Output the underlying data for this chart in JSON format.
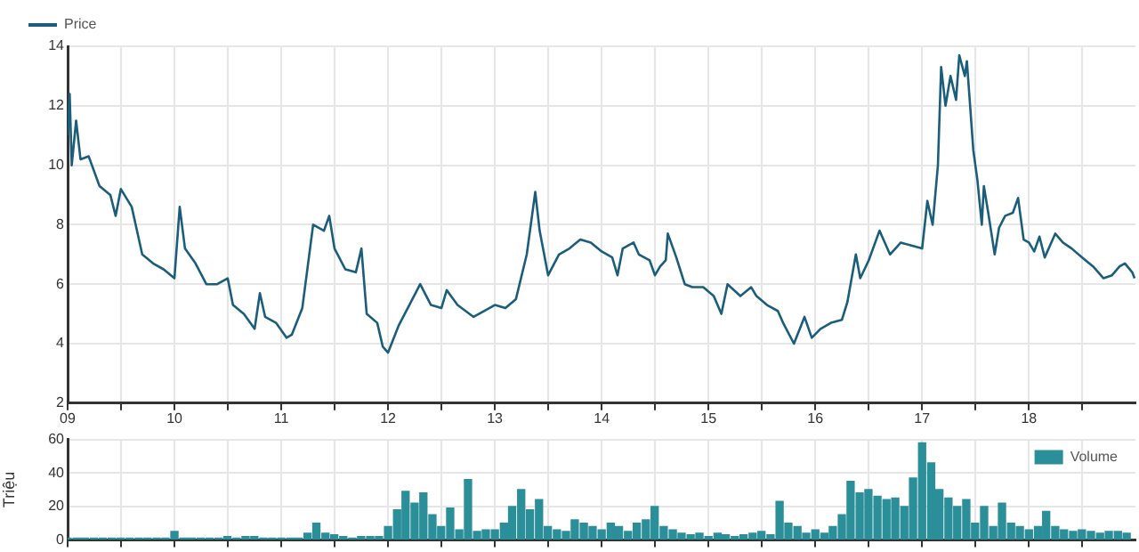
{
  "chart_data": [
    {
      "type": "line",
      "legend": "top left",
      "grid": true,
      "xlim": [
        "2009-01-01",
        "2018-12-31"
      ],
      "xticks": [
        {
          "value": "2009-01-01",
          "label": "09"
        },
        {
          "value": "2009-07-01",
          "label": null
        },
        {
          "value": "2010-01-01",
          "label": "10"
        },
        {
          "value": "2010-07-01",
          "label": null
        },
        {
          "value": "2011-01-01",
          "label": "11"
        },
        {
          "value": "2011-07-01",
          "label": null
        },
        {
          "value": "2012-01-01",
          "label": "12"
        },
        {
          "value": "2012-07-01",
          "label": null
        },
        {
          "value": "2013-01-01",
          "label": "13"
        },
        {
          "value": "2013-07-01",
          "label": null
        },
        {
          "value": "2014-01-01",
          "label": "14"
        },
        {
          "value": "2014-07-01",
          "label": null
        },
        {
          "value": "2015-01-01",
          "label": "15"
        },
        {
          "value": "2015-07-01",
          "label": null
        },
        {
          "value": "2016-01-01",
          "label": "16"
        },
        {
          "value": "2016-07-01",
          "label": null
        },
        {
          "value": "2017-01-01",
          "label": "17"
        },
        {
          "value": "2017-07-01",
          "label": null
        },
        {
          "value": "2018-01-01",
          "label": "18"
        },
        {
          "value": "2018-07-01",
          "label": null
        }
      ],
      "ylim": [
        2,
        14
      ],
      "yticks": [
        2,
        4,
        6,
        8,
        10,
        12,
        14
      ],
      "x": [
        "2009-01-01",
        "2009-01-08",
        "2009-01-15",
        "2009-01-30",
        "2009-02-14",
        "2009-03-14",
        "2009-04-20",
        "2009-05-27",
        "2009-06-14",
        "2009-07-02",
        "2009-08-08",
        "2009-09-13",
        "2009-10-20",
        "2009-11-25",
        "2010-01-01",
        "2010-01-19",
        "2010-02-06",
        "2010-03-14",
        "2010-04-20",
        "2010-05-27",
        "2010-07-02",
        "2010-07-20",
        "2010-08-26",
        "2010-10-02",
        "2010-10-20",
        "2010-11-07",
        "2010-12-14",
        "2011-01-19",
        "2011-02-06",
        "2011-03-14",
        "2011-04-20",
        "2011-05-27",
        "2011-06-14",
        "2011-07-02",
        "2011-08-08",
        "2011-09-13",
        "2011-10-02",
        "2011-10-20",
        "2011-11-25",
        "2011-12-14",
        "2012-01-01",
        "2012-02-06",
        "2012-03-14",
        "2012-04-20",
        "2012-05-27",
        "2012-07-02",
        "2012-07-20",
        "2012-08-26",
        "2012-10-20",
        "2012-11-25",
        "2013-01-01",
        "2013-02-06",
        "2013-03-14",
        "2013-04-20",
        "2013-05-19",
        "2013-06-03",
        "2013-07-02",
        "2013-08-08",
        "2013-09-13",
        "2013-10-20",
        "2013-11-25",
        "2014-01-01",
        "2014-02-06",
        "2014-02-24",
        "2014-03-14",
        "2014-04-20",
        "2014-05-08",
        "2014-06-14",
        "2014-07-02",
        "2014-07-20",
        "2014-08-08",
        "2014-08-15",
        "2014-09-13",
        "2014-10-12",
        "2014-11-07",
        "2014-12-14",
        "2015-01-19",
        "2015-02-14",
        "2015-03-07",
        "2015-04-20",
        "2015-05-27",
        "2015-06-14",
        "2015-07-20",
        "2015-08-26",
        "2015-09-13",
        "2015-10-20",
        "2015-11-25",
        "2015-12-20",
        "2016-01-19",
        "2016-02-24",
        "2016-04-01",
        "2016-04-20",
        "2016-05-19",
        "2016-06-03",
        "2016-07-02",
        "2016-08-08",
        "2016-09-13",
        "2016-10-20",
        "2016-11-25",
        "2017-01-01",
        "2017-01-19",
        "2017-02-06",
        "2017-02-24",
        "2017-03-07",
        "2017-03-22",
        "2017-04-08",
        "2017-04-27",
        "2017-05-08",
        "2017-05-27",
        "2017-06-03",
        "2017-06-25",
        "2017-07-09",
        "2017-07-24",
        "2017-07-31",
        "2017-08-15",
        "2017-09-06",
        "2017-09-21",
        "2017-10-12",
        "2017-11-07",
        "2017-11-25",
        "2017-12-14",
        "2018-01-01",
        "2018-01-19",
        "2018-02-06",
        "2018-02-24",
        "2018-04-01",
        "2018-04-27",
        "2018-05-27",
        "2018-07-02",
        "2018-08-08",
        "2018-09-13",
        "2018-10-12",
        "2018-11-07",
        "2018-11-25",
        "2018-12-20",
        "2018-12-28"
      ],
      "series": [
        {
          "name": "Price",
          "color": "#1b5e7b",
          "values": [
            11.0,
            12.4,
            10.0,
            11.5,
            10.2,
            10.3,
            9.3,
            9.0,
            8.3,
            9.2,
            8.6,
            7.0,
            6.7,
            6.5,
            6.2,
            8.6,
            7.2,
            6.7,
            6.0,
            6.0,
            6.2,
            5.3,
            5.0,
            4.5,
            5.7,
            4.9,
            4.7,
            4.2,
            4.3,
            5.2,
            8.0,
            7.8,
            8.3,
            7.2,
            6.5,
            6.4,
            7.2,
            5.0,
            4.7,
            3.9,
            3.7,
            4.6,
            5.3,
            6.0,
            5.3,
            5.2,
            5.8,
            5.3,
            4.9,
            5.1,
            5.3,
            5.2,
            5.5,
            7.0,
            9.1,
            7.8,
            6.3,
            7.0,
            7.2,
            7.5,
            7.4,
            7.1,
            6.9,
            6.3,
            7.2,
            7.4,
            7.0,
            6.8,
            6.3,
            6.6,
            6.8,
            7.7,
            6.9,
            6.0,
            5.9,
            5.9,
            5.6,
            5.0,
            6.0,
            5.6,
            5.9,
            5.6,
            5.3,
            5.1,
            4.7,
            4.0,
            4.9,
            4.2,
            4.5,
            4.7,
            4.8,
            5.4,
            7.0,
            6.2,
            6.8,
            7.8,
            7.0,
            7.4,
            7.3,
            7.2,
            8.8,
            8.0,
            10.0,
            13.3,
            12.0,
            13.0,
            12.2,
            13.7,
            13.0,
            13.5,
            10.5,
            9.5,
            8.0,
            9.3,
            8.4,
            7.0,
            7.9,
            8.3,
            8.4,
            8.9,
            7.5,
            7.4,
            7.1,
            7.6,
            6.9,
            7.7,
            7.4,
            7.2,
            6.9,
            6.6,
            6.2,
            6.3,
            6.6,
            6.7,
            6.4,
            6.2
          ]
        }
      ]
    },
    {
      "type": "bar",
      "legend": "top right",
      "grid": true,
      "tick_labels": "y",
      "ylabel": "Triệu",
      "xlim": [
        "2009-01-01",
        "2018-12-31"
      ],
      "xticks": [
        {
          "value": "2009-01-01",
          "label": null
        },
        {
          "value": "2009-07-01",
          "label": null
        },
        {
          "value": "2010-01-01",
          "label": null
        },
        {
          "value": "2010-07-01",
          "label": null
        },
        {
          "value": "2011-01-01",
          "label": null
        },
        {
          "value": "2011-07-01",
          "label": null
        },
        {
          "value": "2012-01-01",
          "label": null
        },
        {
          "value": "2012-07-01",
          "label": null
        },
        {
          "value": "2013-01-01",
          "label": null
        },
        {
          "value": "2013-07-01",
          "label": null
        },
        {
          "value": "2014-01-01",
          "label": null
        },
        {
          "value": "2014-07-01",
          "label": null
        },
        {
          "value": "2015-01-01",
          "label": null
        },
        {
          "value": "2015-07-01",
          "label": null
        },
        {
          "value": "2016-01-01",
          "label": null
        },
        {
          "value": "2016-07-01",
          "label": null
        },
        {
          "value": "2017-01-01",
          "label": null
        },
        {
          "value": "2017-07-01",
          "label": null
        },
        {
          "value": "2018-01-01",
          "label": null
        },
        {
          "value": "2018-07-01",
          "label": null
        }
      ],
      "ylim": [
        0,
        60
      ],
      "yticks": [
        0,
        20,
        40,
        60
      ],
      "x": [
        "2009-01",
        "2009-02",
        "2009-03",
        "2009-04",
        "2009-05",
        "2009-06",
        "2009-07",
        "2009-08",
        "2009-09",
        "2009-10",
        "2009-11",
        "2009-12",
        "2010-01",
        "2010-02",
        "2010-03",
        "2010-04",
        "2010-05",
        "2010-06",
        "2010-07",
        "2010-08",
        "2010-09",
        "2010-10",
        "2010-11",
        "2010-12",
        "2011-01",
        "2011-02",
        "2011-03",
        "2011-04",
        "2011-05",
        "2011-06",
        "2011-07",
        "2011-08",
        "2011-09",
        "2011-10",
        "2011-11",
        "2011-12",
        "2012-01",
        "2012-02",
        "2012-03",
        "2012-04",
        "2012-05",
        "2012-06",
        "2012-07",
        "2012-08",
        "2012-09",
        "2012-10",
        "2012-11",
        "2012-12",
        "2013-01",
        "2013-02",
        "2013-03",
        "2013-04",
        "2013-05",
        "2013-06",
        "2013-07",
        "2013-08",
        "2013-09",
        "2013-10",
        "2013-11",
        "2013-12",
        "2014-01",
        "2014-02",
        "2014-03",
        "2014-04",
        "2014-05",
        "2014-06",
        "2014-07",
        "2014-08",
        "2014-09",
        "2014-10",
        "2014-11",
        "2014-12",
        "2015-01",
        "2015-02",
        "2015-03",
        "2015-04",
        "2015-05",
        "2015-06",
        "2015-07",
        "2015-08",
        "2015-09",
        "2015-10",
        "2015-11",
        "2015-12",
        "2016-01",
        "2016-02",
        "2016-03",
        "2016-04",
        "2016-05",
        "2016-06",
        "2016-07",
        "2016-08",
        "2016-09",
        "2016-10",
        "2016-11",
        "2016-12",
        "2017-01",
        "2017-02",
        "2017-03",
        "2017-04",
        "2017-05",
        "2017-06",
        "2017-07",
        "2017-08",
        "2017-09",
        "2017-10",
        "2017-11",
        "2017-12",
        "2018-01",
        "2018-02",
        "2018-03",
        "2018-04",
        "2018-05",
        "2018-06",
        "2018-07",
        "2018-08",
        "2018-09",
        "2018-10",
        "2018-11",
        "2018-12"
      ],
      "series": [
        {
          "name": "Volume",
          "color": "#2b8f9a",
          "values": [
            1,
            1,
            1,
            1,
            1,
            1,
            1,
            1,
            1,
            1,
            1,
            1,
            5,
            1,
            1,
            1,
            1,
            1,
            2,
            1,
            2,
            2,
            1,
            1,
            1,
            1,
            1,
            4,
            10,
            4,
            3,
            2,
            1,
            2,
            2,
            2,
            8,
            18,
            29,
            22,
            28,
            15,
            8,
            19,
            6,
            36,
            5,
            6,
            6,
            10,
            20,
            30,
            18,
            24,
            8,
            6,
            5,
            12,
            10,
            8,
            6,
            10,
            8,
            5,
            10,
            12,
            20,
            8,
            6,
            4,
            3,
            4,
            2,
            4,
            3,
            2,
            3,
            4,
            5,
            3,
            23,
            10,
            8,
            4,
            6,
            4,
            8,
            15,
            35,
            28,
            30,
            26,
            24,
            25,
            20,
            37,
            58,
            46,
            30,
            25,
            20,
            24,
            10,
            20,
            8,
            22,
            10,
            8,
            6,
            8,
            17,
            8,
            6,
            5,
            6,
            5,
            4,
            5,
            5,
            4
          ]
        }
      ]
    }
  ]
}
